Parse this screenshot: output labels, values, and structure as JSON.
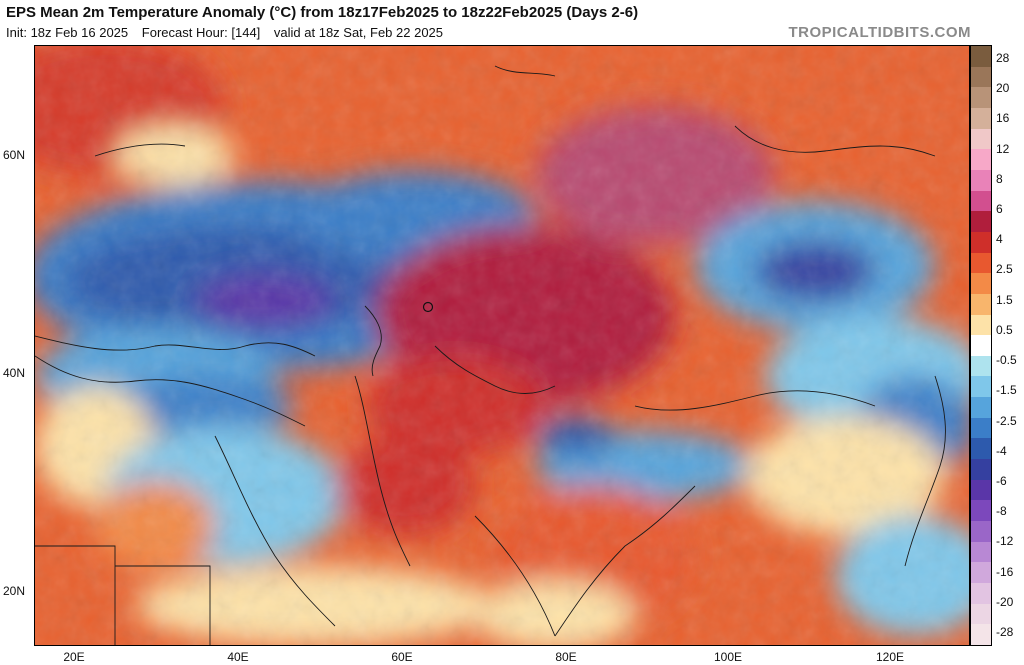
{
  "header": {
    "title": "EPS Mean 2m Temperature Anomaly (°C) from 18z17Feb2025 to 18z22Feb2025 (Days 2-6)",
    "init": "Init: 18z Feb 16 2025",
    "forecast_hour": "Forecast Hour: [144]",
    "valid": "valid at 18z Sat, Feb 22 2025",
    "brand": "TROPICALTIDBITS.COM"
  },
  "axes": {
    "lat_labels": [
      "60N",
      "40N",
      "20N"
    ],
    "lon_labels": [
      "20E",
      "40E",
      "60E",
      "80E",
      "100E",
      "120E"
    ]
  },
  "colorbar": {
    "labels": [
      "28",
      "20",
      "16",
      "12",
      "8",
      "6",
      "4",
      "2.5",
      "1.5",
      "0.5",
      "-0.5",
      "-1.5",
      "-2.5",
      "-4",
      "-6",
      "-8",
      "-12",
      "-16",
      "-20",
      "-28"
    ],
    "colors": [
      "#7a5c3e",
      "#9a7659",
      "#b89378",
      "#d4b09a",
      "#f0c8c8",
      "#f7a8c8",
      "#e982b8",
      "#d24f8f",
      "#b01e3c",
      "#cf2f2a",
      "#e8582f",
      "#f38a47",
      "#f8b56c",
      "#fde2a8",
      "#ffffff",
      "#aee3ee",
      "#7fc7ea",
      "#56a4dc",
      "#3b7ec8",
      "#2d5aad",
      "#3540a0",
      "#5a36a8",
      "#7c48bc",
      "#9a66c8",
      "#b888d4",
      "#d0a8dc",
      "#e2c4e2",
      "#ecd6e4",
      "#f4e4e8"
    ]
  }
}
